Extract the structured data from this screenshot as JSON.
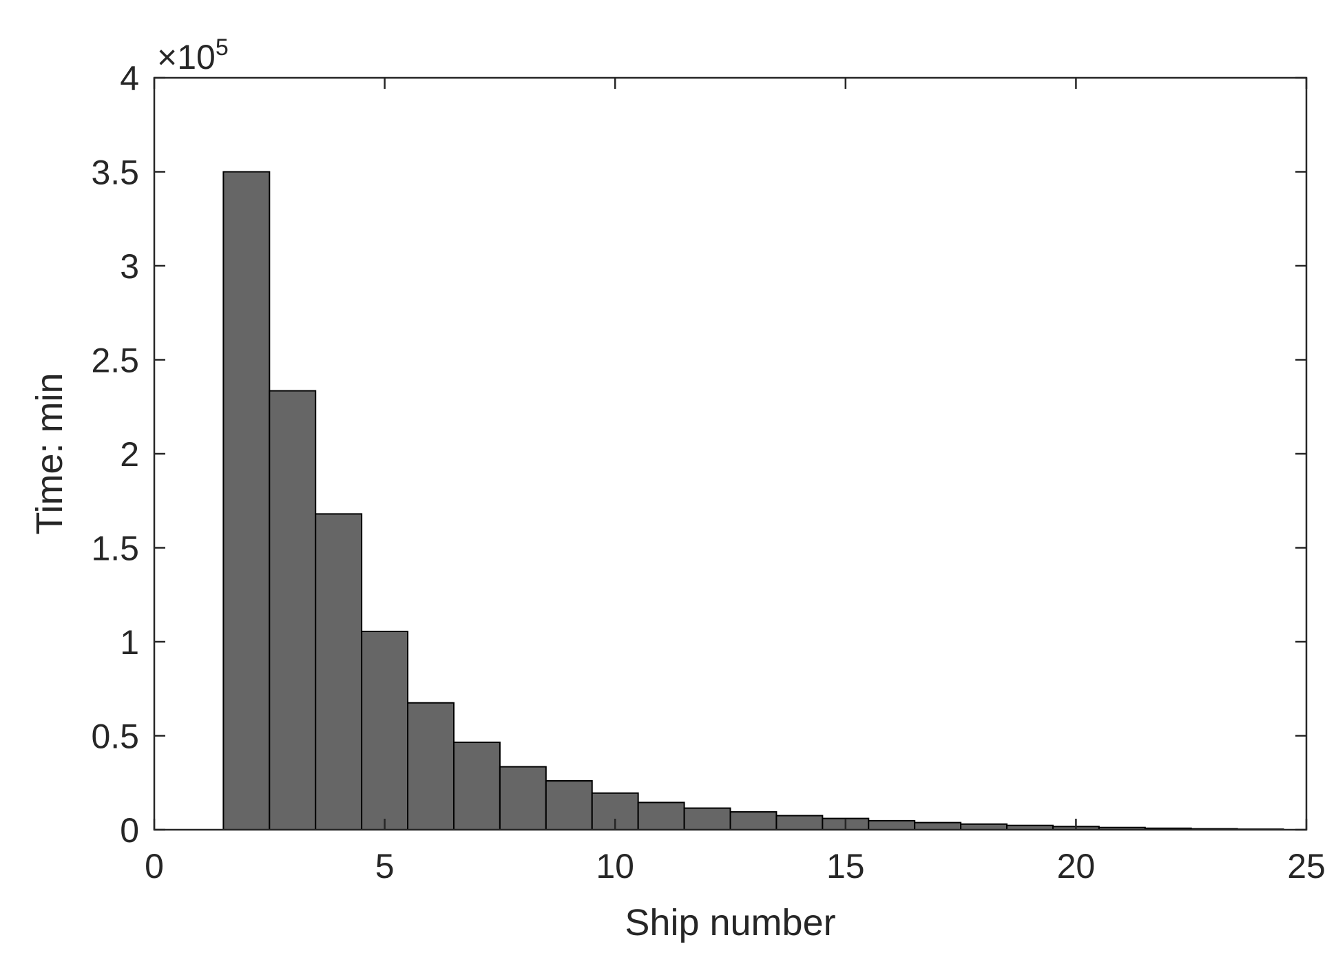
{
  "chart_data": {
    "type": "bar",
    "xlabel": "Ship number",
    "ylabel": "Time: min",
    "y_exponent_label": "×10⁵",
    "y_exponent_base": "×10",
    "y_exponent_power": "5",
    "xlim": [
      0,
      25
    ],
    "ylim": [
      0,
      4
    ],
    "y_scale_factor": 100000,
    "xticks": [
      "0",
      "5",
      "10",
      "15",
      "20",
      "25"
    ],
    "yticks": [
      "0",
      "0.5",
      "1",
      "1.5",
      "2",
      "2.5",
      "3",
      "3.5",
      "4"
    ],
    "grid": false,
    "bar_color": "#666666",
    "edge_color": "#000000",
    "x": [
      2,
      3,
      4,
      5,
      6,
      7,
      8,
      9,
      10,
      11,
      12,
      13,
      14,
      15,
      16,
      17,
      18,
      19,
      20,
      21,
      22,
      23,
      24
    ],
    "values": [
      350000,
      233500,
      168000,
      105500,
      67500,
      46500,
      33500,
      26000,
      19500,
      14500,
      11500,
      9500,
      7500,
      6000,
      4800,
      3800,
      3000,
      2300,
      1700,
      1200,
      800,
      500,
      300
    ]
  }
}
